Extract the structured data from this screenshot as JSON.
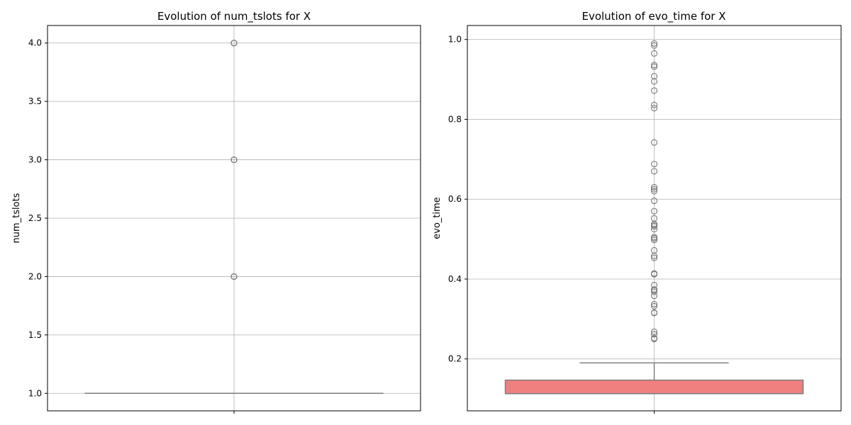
{
  "chart_data": [
    {
      "type": "box",
      "title": "Evolution of num_tslots for X",
      "xlabel": "",
      "ylabel": "num_tslots",
      "ylim": [
        0.85,
        4.15
      ],
      "yticks": [
        1.0,
        1.5,
        2.0,
        2.5,
        3.0,
        3.5,
        4.0
      ],
      "ytick_labels": [
        "1.0",
        "1.5",
        "2.0",
        "2.5",
        "3.0",
        "3.5",
        "4.0"
      ],
      "grid": true,
      "box_color": "#f08080",
      "edge_color": "#7a7a7a",
      "box": {
        "q1": 1.0,
        "median": 1.0,
        "q3": 1.0,
        "whisker_low": 1.0,
        "whisker_high": 1.0
      },
      "outliers": [
        2.0,
        2.0,
        2.0,
        3.0,
        3.0,
        3.0,
        4.0,
        4.0,
        4.0
      ]
    },
    {
      "type": "box",
      "title": "Evolution of evo_time for X",
      "xlabel": "",
      "ylabel": "evo_time",
      "ylim": [
        0.07,
        1.035
      ],
      "yticks": [
        0.2,
        0.4,
        0.6,
        0.8,
        1.0
      ],
      "ytick_labels": [
        "0.2",
        "0.4",
        "0.6",
        "0.8",
        "1.0"
      ],
      "grid": true,
      "box_color": "#f08080",
      "edge_color": "#7a7a7a",
      "box": {
        "q1": 0.113,
        "median": 0.113,
        "q3": 0.147,
        "whisker_low": 0.113,
        "whisker_high": 0.19
      },
      "outliers": [
        0.25,
        0.252,
        0.262,
        0.268,
        0.315,
        0.316,
        0.332,
        0.337,
        0.358,
        0.368,
        0.372,
        0.374,
        0.385,
        0.412,
        0.414,
        0.453,
        0.458,
        0.472,
        0.498,
        0.502,
        0.505,
        0.525,
        0.532,
        0.535,
        0.538,
        0.552,
        0.57,
        0.596,
        0.62,
        0.625,
        0.63,
        0.67,
        0.688,
        0.742,
        0.828,
        0.836,
        0.872,
        0.895,
        0.908,
        0.932,
        0.936,
        0.965,
        0.985,
        0.99
      ]
    }
  ]
}
